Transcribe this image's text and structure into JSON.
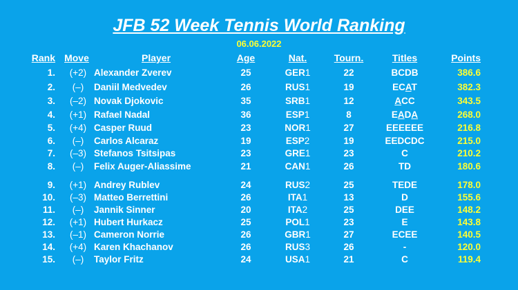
{
  "title": "JFB 52 Week Tennis World Ranking",
  "date": "06.06.2022",
  "colors": {
    "background": "#0aa3ea",
    "text": "#ffffff",
    "accent": "#ffff33"
  },
  "headers": {
    "rank": "Rank",
    "move": "Move",
    "player": "Player",
    "age": "Age",
    "nat": "Nat.",
    "tourn": "Tourn.",
    "titles": "Titles",
    "points": "Points"
  },
  "rows": [
    {
      "rank": "1.",
      "move": "(+2)",
      "player": "Alexander Zverev",
      "age": "25",
      "nat": "GER",
      "nat_rank": "1",
      "tourn": "22",
      "titles": "BCDB",
      "titles_ul": "",
      "titles_post": "",
      "points": "386.6"
    },
    {
      "rank": "2.",
      "move": "(–)",
      "player": "Daniil Medvedev",
      "age": "26",
      "nat": "RUS",
      "nat_rank": "1",
      "tourn": "19",
      "titles": "EC",
      "titles_ul": "A",
      "titles_post": "T",
      "points": "382.3"
    },
    {
      "rank": "3.",
      "move": "(–2)",
      "player": "Novak Djokovic",
      "age": "35",
      "nat": "SRB",
      "nat_rank": "1",
      "tourn": "12",
      "titles": "",
      "titles_ul": "A",
      "titles_post": "CC",
      "points": "343.5"
    },
    {
      "rank": "4.",
      "move": "(+1)",
      "player": "Rafael Nadal",
      "age": "36",
      "nat": "ESP",
      "nat_rank": "1",
      "tourn": "8",
      "titles": "E",
      "titles_ul": "A",
      "titles_post": "DA",
      "titles_ul2": true,
      "points": "268.0"
    },
    {
      "rank": "5.",
      "move": "(+4)",
      "player": "Casper Ruud",
      "age": "23",
      "nat": "NOR",
      "nat_rank": "1",
      "tourn": "27",
      "titles": "EEEEEE",
      "titles_ul": "",
      "titles_post": "",
      "points": "216.8"
    },
    {
      "rank": "6.",
      "move": "(–)",
      "player": "Carlos Alcaraz",
      "age": "19",
      "nat": "ESP",
      "nat_rank": "2",
      "tourn": "19",
      "titles": "EEDCDC",
      "titles_ul": "",
      "titles_post": "",
      "points": "215.0"
    },
    {
      "rank": "7.",
      "move": "(–3)",
      "player": "Stefanos Tsitsipas",
      "age": "23",
      "nat": "GRE",
      "nat_rank": "1",
      "tourn": "23",
      "titles": "C",
      "titles_ul": "",
      "titles_post": "",
      "points": "210.2"
    },
    {
      "rank": "8.",
      "move": "(–)",
      "player": "Felix Auger-Aliassime",
      "age": "21",
      "nat": "CAN",
      "nat_rank": "1",
      "tourn": "26",
      "titles": "TD",
      "titles_ul": "",
      "titles_post": "",
      "points": "180.6"
    },
    {
      "rank": "9.",
      "move": "(+1)",
      "player": "Andrey Rublev",
      "age": "24",
      "nat": "RUS",
      "nat_rank": "2",
      "tourn": "25",
      "titles": "TEDE",
      "titles_ul": "",
      "titles_post": "",
      "points": "178.0"
    },
    {
      "rank": "10.",
      "move": "(–3)",
      "player": "Matteo Berrettini",
      "age": "26",
      "nat": "ITA",
      "nat_rank": "1",
      "tourn": "13",
      "titles": "D",
      "titles_ul": "",
      "titles_post": "",
      "points": "155.6"
    },
    {
      "rank": "11.",
      "move": "(–)",
      "player": "Jannik Sinner",
      "age": "20",
      "nat": "ITA",
      "nat_rank": "2",
      "tourn": "25",
      "titles": "DEE",
      "titles_ul": "",
      "titles_post": "",
      "points": "148.2"
    },
    {
      "rank": "12.",
      "move": "(+1)",
      "player": "Hubert Hurkacz",
      "age": "25",
      "nat": "POL",
      "nat_rank": "1",
      "tourn": "23",
      "titles": "E",
      "titles_ul": "",
      "titles_post": "",
      "points": "143.8"
    },
    {
      "rank": "13.",
      "move": "(–1)",
      "player": "Cameron Norrie",
      "age": "26",
      "nat": "GBR",
      "nat_rank": "1",
      "tourn": "27",
      "titles": "ECEE",
      "titles_ul": "",
      "titles_post": "",
      "points": "140.5"
    },
    {
      "rank": "14.",
      "move": "(+4)",
      "player": "Karen Khachanov",
      "age": "26",
      "nat": "RUS",
      "nat_rank": "3",
      "tourn": "26",
      "titles": "-",
      "titles_ul": "",
      "titles_post": "",
      "points": "120.0"
    },
    {
      "rank": "15.",
      "move": "(–)",
      "player": "Taylor Fritz",
      "age": "24",
      "nat": "USA",
      "nat_rank": "1",
      "tourn": "21",
      "titles": "C",
      "titles_ul": "",
      "titles_post": "",
      "points": "119.4"
    }
  ]
}
